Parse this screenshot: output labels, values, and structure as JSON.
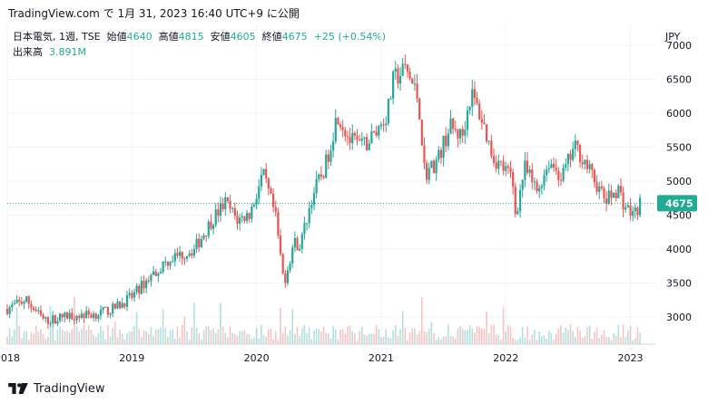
{
  "topbar": {
    "text": "TradingView.com で 1月 31, 2023 16:40 UTC+9 に公開"
  },
  "legend": {
    "symbol": "日本電気, 1週, TSE",
    "open_label": "始値",
    "open": "4640",
    "high_label": "高値",
    "high": "4815",
    "low_label": "安値",
    "low": "4605",
    "close_label": "終値",
    "close": "4675",
    "change": "+25 (+0.54%)",
    "volume_label": "出来高",
    "volume": "3.891M"
  },
  "currency": "JPY",
  "price_badge": "4675",
  "footer": {
    "brand": "TradingView"
  },
  "colors": {
    "up": "#26a69a",
    "down": "#ef5350",
    "badge": "#22ab94",
    "grid": "#f0f3fa",
    "axis_text": "#131722"
  },
  "chart_data": {
    "type": "candlestick",
    "title": "日本電気, 1週, TSE",
    "xlabel": "",
    "ylabel": "",
    "y_axis_side": "right",
    "ylim": [
      2600,
      7000
    ],
    "y_ticks": [
      3000,
      3500,
      4000,
      4500,
      5000,
      5500,
      6000,
      6500,
      7000
    ],
    "x_ticks": [
      {
        "label": "2018",
        "t": 2018.0
      },
      {
        "label": "2019",
        "t": 2019.0
      },
      {
        "label": "2020",
        "t": 2020.0
      },
      {
        "label": "2021",
        "t": 2021.0
      },
      {
        "label": "2022",
        "t": 2022.0
      },
      {
        "label": "2023",
        "t": 2023.0
      }
    ],
    "xlim": [
      2018.0,
      2023.2
    ],
    "last_price": 4675,
    "price_path": [
      [
        2018.0,
        3120
      ],
      [
        2018.15,
        3250
      ],
      [
        2018.3,
        2940
      ],
      [
        2018.5,
        3020
      ],
      [
        2018.7,
        3040
      ],
      [
        2018.85,
        3120
      ],
      [
        2019.0,
        3300
      ],
      [
        2019.15,
        3600
      ],
      [
        2019.3,
        3850
      ],
      [
        2019.5,
        4000
      ],
      [
        2019.65,
        4450
      ],
      [
        2019.75,
        4680
      ],
      [
        2019.85,
        4420
      ],
      [
        2019.95,
        4530
      ],
      [
        2020.05,
        5100
      ],
      [
        2020.15,
        4500
      ],
      [
        2020.22,
        3500
      ],
      [
        2020.3,
        4100
      ],
      [
        2020.35,
        4050
      ],
      [
        2020.45,
        4800
      ],
      [
        2020.55,
        5200
      ],
      [
        2020.65,
        6000
      ],
      [
        2020.75,
        5600
      ],
      [
        2020.85,
        5500
      ],
      [
        2020.95,
        5700
      ],
      [
        2021.05,
        6000
      ],
      [
        2021.1,
        6500
      ],
      [
        2021.2,
        6650
      ],
      [
        2021.3,
        6200
      ],
      [
        2021.35,
        5100
      ],
      [
        2021.45,
        5300
      ],
      [
        2021.55,
        5800
      ],
      [
        2021.65,
        5650
      ],
      [
        2021.72,
        6300
      ],
      [
        2021.8,
        5950
      ],
      [
        2021.9,
        5350
      ],
      [
        2022.0,
        5150
      ],
      [
        2022.05,
        5050
      ],
      [
        2022.08,
        4500
      ],
      [
        2022.15,
        5200
      ],
      [
        2022.25,
        4850
      ],
      [
        2022.35,
        5300
      ],
      [
        2022.45,
        5050
      ],
      [
        2022.55,
        5500
      ],
      [
        2022.6,
        5400
      ],
      [
        2022.7,
        5050
      ],
      [
        2022.8,
        4700
      ],
      [
        2022.9,
        4900
      ],
      [
        2022.95,
        4650
      ],
      [
        2023.02,
        4500
      ],
      [
        2023.08,
        4675
      ]
    ],
    "volume_scale_max": 12
  }
}
